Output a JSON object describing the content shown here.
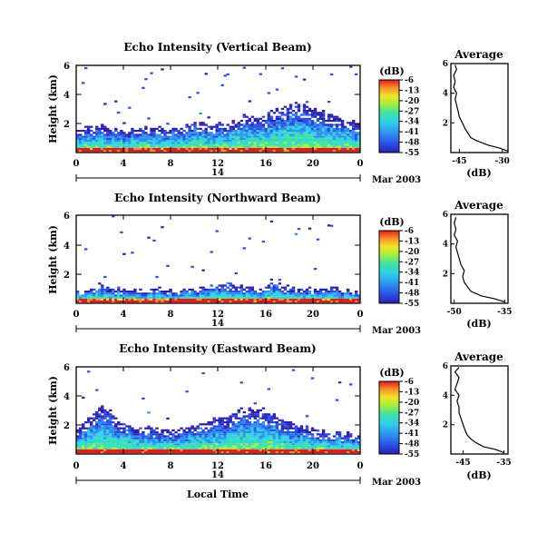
{
  "figure": {
    "date_label": "Mar 2003",
    "day_label": "14",
    "xlabel": "Local Time",
    "ylabel": "Height (km)",
    "colorbar_unit": "(dB)",
    "average_title": "Average",
    "average_xlabel": "(dB)"
  },
  "chart_data": [
    {
      "type": "heatmap",
      "title": "Echo Intensity (Vertical Beam)",
      "x_ticks": [
        "0",
        "4",
        "8",
        "12",
        "16",
        "20",
        "0"
      ],
      "y_ticks": [
        "2",
        "4",
        "6"
      ],
      "xlim": [
        0,
        24
      ],
      "ylim": [
        0,
        6
      ],
      "colorbar": {
        "label": "(dB)",
        "ticks": [
          "-6",
          "-13",
          "-20",
          "-27",
          "-34",
          "-41",
          "-48",
          "-55"
        ],
        "range": [
          -55,
          -6
        ]
      },
      "echo_layer_top_km": [
        1.5,
        1.6,
        1.7,
        1.6,
        1.5,
        1.6,
        1.7,
        1.6,
        1.6,
        1.8,
        2.0,
        1.9,
        1.9,
        2.3,
        2.6,
        2.4,
        2.8,
        3.2,
        3.3,
        3.0,
        2.7,
        2.5,
        2.2,
        2.0
      ],
      "average_profile": {
        "title": "Average",
        "xlabel": "(dB)",
        "x_ticks": [
          "-45",
          "-30"
        ],
        "y_ticks": [
          "2",
          "4",
          "6"
        ],
        "xlim": [
          -48,
          -28
        ],
        "ylim": [
          0,
          6
        ],
        "height_km": [
          0.1,
          0.3,
          0.5,
          0.8,
          1.0,
          1.3,
          1.6,
          2.0,
          2.4,
          2.8,
          3.2,
          3.6,
          4.0,
          4.4,
          4.8,
          5.2,
          5.6,
          5.9
        ],
        "intensity_db": [
          -28,
          -31,
          -35,
          -39,
          -41,
          -42,
          -43,
          -44,
          -45,
          -45.5,
          -46,
          -46.5,
          -46,
          -47,
          -46.5,
          -47,
          -46,
          -46.5
        ]
      }
    },
    {
      "type": "heatmap",
      "title": "Echo Intensity (Northward Beam)",
      "x_ticks": [
        "0",
        "4",
        "8",
        "12",
        "16",
        "20",
        "0"
      ],
      "y_ticks": [
        "2",
        "4",
        "6"
      ],
      "xlim": [
        0,
        24
      ],
      "ylim": [
        0,
        6
      ],
      "colorbar": {
        "label": "(dB)",
        "ticks": [
          "-6",
          "-13",
          "-20",
          "-27",
          "-34",
          "-41",
          "-48",
          "-55"
        ],
        "range": [
          -55,
          -6
        ]
      },
      "echo_layer_top_km": [
        0.8,
        0.9,
        1.3,
        1.0,
        0.9,
        0.8,
        0.8,
        0.9,
        0.8,
        0.9,
        1.0,
        1.2,
        1.3,
        1.1,
        1.0,
        1.0,
        1.5,
        1.2,
        1.0,
        0.9,
        0.9,
        1.0,
        0.8,
        0.8
      ],
      "average_profile": {
        "title": "Average",
        "xlabel": "(dB)",
        "x_ticks": [
          "-50",
          "-35"
        ],
        "y_ticks": [
          "2",
          "4",
          "6"
        ],
        "xlim": [
          -51,
          -34
        ],
        "ylim": [
          0,
          6
        ],
        "height_km": [
          0.1,
          0.3,
          0.5,
          0.8,
          1.1,
          1.4,
          1.8,
          2.2,
          2.6,
          3.0,
          3.4,
          3.8,
          4.2,
          4.6,
          5.0,
          5.4,
          5.8
        ],
        "intensity_db": [
          -35,
          -38,
          -42,
          -45,
          -46,
          -47,
          -47.5,
          -47,
          -48,
          -48.5,
          -49,
          -49.5,
          -49,
          -50,
          -49.5,
          -50,
          -49.5
        ]
      }
    },
    {
      "type": "heatmap",
      "title": "Echo Intensity (Eastward Beam)",
      "x_ticks": [
        "0",
        "4",
        "8",
        "12",
        "16",
        "20",
        "0"
      ],
      "y_ticks": [
        "2",
        "4",
        "6"
      ],
      "xlim": [
        0,
        24
      ],
      "ylim": [
        0,
        6
      ],
      "colorbar": {
        "label": "(dB)",
        "ticks": [
          "-6",
          "-13",
          "-20",
          "-27",
          "-34",
          "-41",
          "-48",
          "-55"
        ],
        "range": [
          -55,
          -6
        ]
      },
      "echo_layer_top_km": [
        1.5,
        2.6,
        3.2,
        2.6,
        2.0,
        1.7,
        1.8,
        1.5,
        1.6,
        1.9,
        2.0,
        2.2,
        2.6,
        2.8,
        3.1,
        3.0,
        2.7,
        2.3,
        1.9,
        1.7,
        1.5,
        1.4,
        1.3,
        1.2
      ],
      "average_profile": {
        "title": "Average",
        "xlabel": "(dB)",
        "x_ticks": [
          "-45",
          "-35"
        ],
        "y_ticks": [
          "2",
          "4",
          "6"
        ],
        "xlim": [
          -48,
          -34
        ],
        "ylim": [
          0,
          6
        ],
        "height_km": [
          0.1,
          0.3,
          0.5,
          0.8,
          1.0,
          1.3,
          1.6,
          2.0,
          2.4,
          2.8,
          3.2,
          3.6,
          4.0,
          4.4,
          4.8,
          5.2,
          5.6,
          5.9
        ],
        "intensity_db": [
          -35,
          -37,
          -40,
          -42,
          -43,
          -44,
          -44.5,
          -45,
          -45.5,
          -46,
          -46,
          -46.5,
          -46,
          -47,
          -46.5,
          -46,
          -47,
          -46
        ]
      }
    }
  ]
}
